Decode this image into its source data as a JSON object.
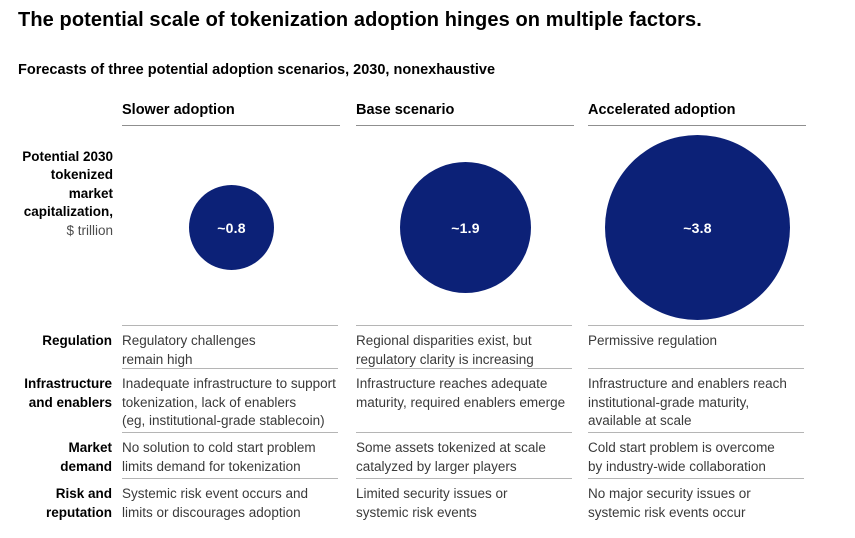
{
  "title": "The potential scale of tokenization adoption hinges on multiple factors.",
  "subtitle": "Forecasts of three potential adoption scenarios, 2030, nonexhaustive",
  "metric_label": {
    "main": "Potential 2030\ntokenized\nmarket\ncapitalization,",
    "unit": "$ trillion"
  },
  "scenarios": [
    {
      "label": "Slower adoption",
      "value": 0.8,
      "value_label": "~0.8"
    },
    {
      "label": "Base scenario",
      "value": 1.9,
      "value_label": "~1.9"
    },
    {
      "label": "Accelerated adoption",
      "value": 3.8,
      "value_label": "~3.8"
    }
  ],
  "factors": [
    {
      "label": "Regulation",
      "cells": [
        "Regulatory challenges\nremain high",
        "Regional disparities exist, but\nregulatory clarity is increasing",
        "Permissive regulation"
      ]
    },
    {
      "label": "Infrastructure\nand enablers",
      "cells": [
        "Inadequate infrastructure to support\ntokenization, lack of enablers\n(eg, institutional-grade stablecoin)",
        "Infrastructure reaches adequate\nmaturity, required enablers emerge",
        "Infrastructure and enablers reach\ninstitutional-grade maturity,\navailable at scale"
      ]
    },
    {
      "label": "Market\ndemand",
      "cells": [
        "No solution to cold start problem\nlimits demand for tokenization",
        "Some assets tokenized at scale\ncatalyzed by larger players",
        "Cold start problem is overcome\nby industry-wide collaboration"
      ]
    },
    {
      "label": "Risk and\nreputation",
      "cells": [
        "Systemic risk event occurs and\nlimits or discourages adoption",
        "Limited security issues or\nsystemic risk events",
        "No major security issues or\nsystemic risk events occur"
      ]
    }
  ],
  "colors": {
    "bubble": "#0c2177",
    "bubble_text": "#ffffff",
    "header_rule": "#8f8f8f",
    "row_rule": "#b5b5b5",
    "cell_text": "#3a3a3a"
  },
  "chart_data": {
    "type": "bubble",
    "title": "The potential scale of tokenization adoption hinges on multiple factors.",
    "subtitle": "Forecasts of three potential adoption scenarios, 2030, nonexhaustive",
    "metric": "Potential 2030 tokenized market capitalization, $ trillion",
    "categories": [
      "Slower adoption",
      "Base scenario",
      "Accelerated adoption"
    ],
    "values": [
      0.8,
      1.9,
      3.8
    ],
    "value_labels": [
      "~0.8",
      "~1.9",
      "~3.8"
    ],
    "sizing": "area-proportional",
    "bubble_color": "#0c2177",
    "factor_rows": [
      "Regulation",
      "Infrastructure and enablers",
      "Market demand",
      "Risk and reputation"
    ]
  }
}
